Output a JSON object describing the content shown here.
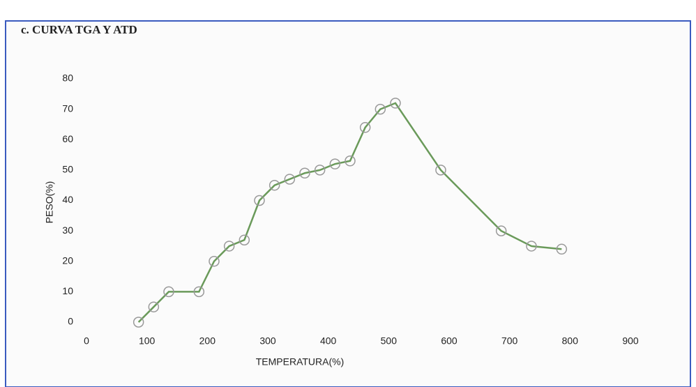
{
  "chart_data": {
    "type": "line",
    "title": "c. CURVA TGA Y ATD",
    "x_label": "TEMPERATURA(%)",
    "y_label": "PESO(%)",
    "x": [
      100,
      125,
      150,
      200,
      225,
      250,
      275,
      300,
      325,
      350,
      375,
      400,
      425,
      450,
      475,
      500,
      525,
      600,
      700,
      750,
      800
    ],
    "series": [
      {
        "name": "PESO(%)",
        "color": "#6a9a5a",
        "values": [
          0,
          5,
          10,
          10,
          20,
          25,
          27,
          40,
          45,
          47,
          49,
          50,
          52,
          53,
          64,
          70,
          72,
          50,
          30,
          25,
          24
        ]
      }
    ],
    "xlim": [
      0,
      900
    ],
    "xticks": [
      0,
      100,
      200,
      300,
      400,
      500,
      600,
      700,
      800,
      900
    ],
    "ylim": [
      0,
      80
    ],
    "yticks": [
      0,
      10,
      20,
      30,
      40,
      50,
      60,
      70,
      80
    ],
    "grid": false
  }
}
